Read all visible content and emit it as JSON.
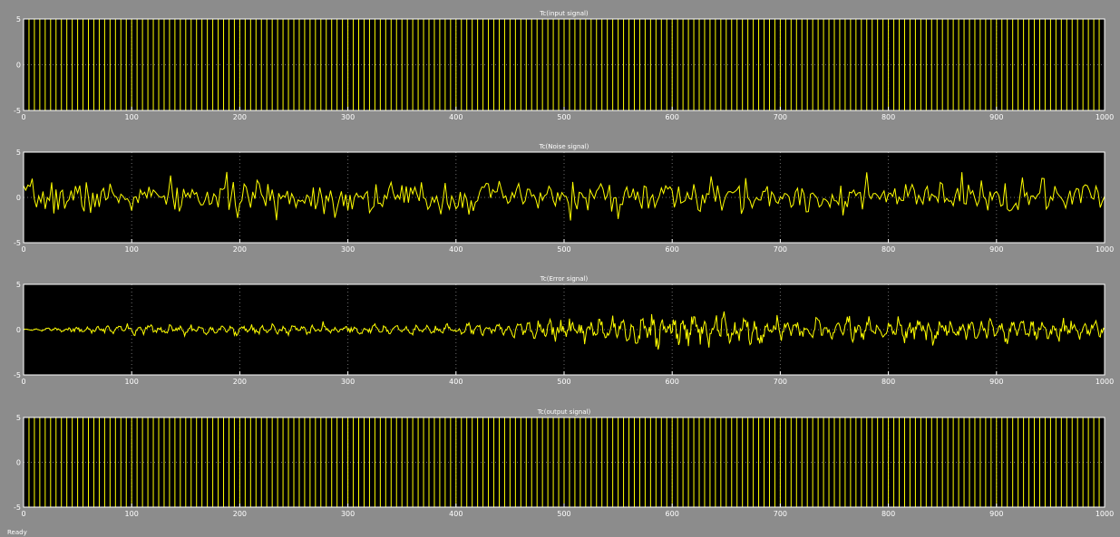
{
  "window": {
    "status_text": "Ready"
  },
  "style": {
    "background": "#8c8c8c",
    "axes_bg": "#000000",
    "line": "#ffff00",
    "grid": "#6e6e6e",
    "frame": "#ffffff",
    "text": "#ffffff"
  },
  "chart_data": [
    {
      "type": "line",
      "title": "Tc(input signal)",
      "xlim": [
        0,
        1000
      ],
      "ylim": [
        -5,
        5
      ],
      "xticks": [
        0,
        100,
        200,
        300,
        400,
        500,
        600,
        700,
        800,
        900,
        1000
      ],
      "yticks": [
        5,
        0,
        -5
      ],
      "grid": "dotted",
      "signal": {
        "kind": "square",
        "amplitude": 5,
        "period": 10,
        "samples": 1001
      }
    },
    {
      "type": "line",
      "title": "Tc(Noise signal)",
      "xlim": [
        0,
        1000
      ],
      "ylim": [
        -5,
        5
      ],
      "xticks": [
        0,
        100,
        200,
        300,
        400,
        500,
        600,
        700,
        800,
        900,
        1000
      ],
      "yticks": [
        5,
        0,
        -5
      ],
      "grid": "dotted",
      "signal": {
        "kind": "random-steps",
        "std": 0.9,
        "step": 2,
        "range": [
          -3.2,
          3.4
        ],
        "seed": 7
      }
    },
    {
      "type": "line",
      "title": "Tc(Error signal)",
      "xlim": [
        0,
        1000
      ],
      "ylim": [
        -5,
        5
      ],
      "xticks": [
        0,
        100,
        200,
        300,
        400,
        500,
        600,
        700,
        800,
        900,
        1000
      ],
      "yticks": [
        5,
        0,
        -5
      ],
      "grid": "dotted",
      "signal": {
        "kind": "oscillation",
        "envelope": [
          [
            0,
            0.05
          ],
          [
            100,
            0.4
          ],
          [
            380,
            0.35
          ],
          [
            500,
            0.8
          ],
          [
            600,
            1.3
          ],
          [
            700,
            0.9
          ],
          [
            1000,
            0.9
          ]
        ],
        "range": [
          -2.2,
          2.0
        ],
        "seed": 13
      }
    },
    {
      "type": "line",
      "title": "Tc(output signal)",
      "xlim": [
        0,
        1000
      ],
      "ylim": [
        -5,
        5
      ],
      "xticks": [
        0,
        100,
        200,
        300,
        400,
        500,
        600,
        700,
        800,
        900,
        1000
      ],
      "yticks": [
        5,
        0,
        -5
      ],
      "grid": "dotted",
      "signal": {
        "kind": "square",
        "amplitude": 5,
        "period": 10,
        "samples": 1001
      }
    }
  ]
}
